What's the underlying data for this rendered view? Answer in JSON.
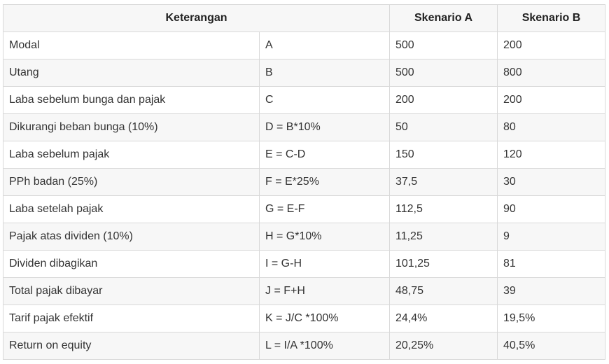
{
  "table": {
    "headers": [
      "Keterangan",
      "Skenario A",
      "Skenario B"
    ],
    "rows": [
      [
        "Modal",
        "A",
        "500",
        "200"
      ],
      [
        "Utang",
        "B",
        "500",
        "800"
      ],
      [
        "Laba sebelum bunga dan pajak",
        "C",
        "200",
        "200"
      ],
      [
        "Dikurangi beban bunga (10%)",
        "D = B*10%",
        "50",
        "80"
      ],
      [
        "Laba sebelum pajak",
        "E = C-D",
        "150",
        "120"
      ],
      [
        "PPh badan (25%)",
        "F = E*25%",
        "37,5",
        "30"
      ],
      [
        "Laba setelah pajak",
        "G = E-F",
        "112,5",
        "90"
      ],
      [
        "Pajak atas dividen (10%)",
        "H = G*10%",
        "11,25",
        "9"
      ],
      [
        "Dividen dibagikan",
        "I = G-H",
        "101,25",
        "81"
      ],
      [
        "Total pajak dibayar",
        "J = F+H",
        "48,75",
        "39"
      ],
      [
        "Tarif pajak efektif",
        "K = J/C *100%",
        "24,4%",
        "19,5%"
      ],
      [
        "Return on equity",
        "L = I/A *100%",
        "20,25%",
        "40,5%"
      ]
    ]
  }
}
